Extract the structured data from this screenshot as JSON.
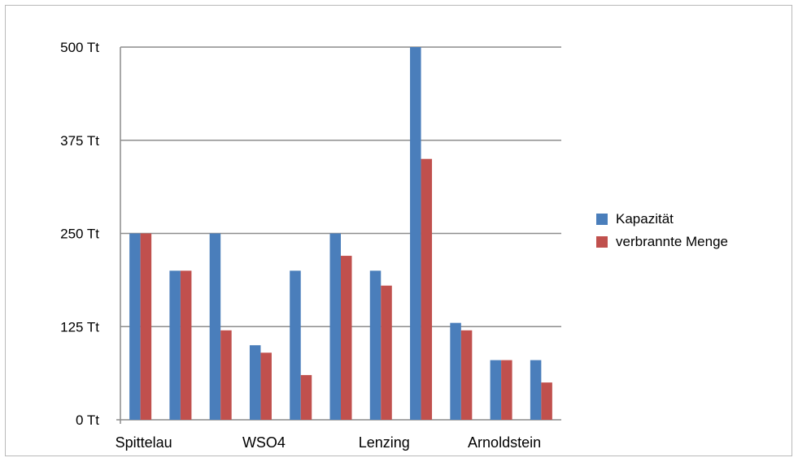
{
  "chart_data": {
    "type": "bar",
    "title": "",
    "xlabel": "",
    "ylabel": "",
    "ylim": [
      0,
      500
    ],
    "yticks": [
      0,
      125,
      250,
      375,
      500
    ],
    "ytick_labels": [
      "0 Tt",
      "125 Tt",
      "250 Tt",
      "375 Tt",
      "500 Tt"
    ],
    "grid": true,
    "legend_position": "right",
    "category_labels": [
      {
        "label": "Spittelau",
        "slot": 0
      },
      {
        "label": "WSO4",
        "slot": 3
      },
      {
        "label": "Lenzing",
        "slot": 6
      },
      {
        "label": "Arnoldstein",
        "slot": 9
      }
    ],
    "slot_count": 11,
    "series": [
      {
        "name": "Kapazität",
        "color": "#4a7ebb",
        "values": [
          250,
          200,
          250,
          100,
          200,
          250,
          200,
          500,
          130,
          80,
          80
        ]
      },
      {
        "name": "verbrannte Menge",
        "color": "#c0504d",
        "values": [
          250,
          200,
          120,
          90,
          60,
          220,
          180,
          350,
          120,
          80,
          50
        ]
      }
    ]
  }
}
